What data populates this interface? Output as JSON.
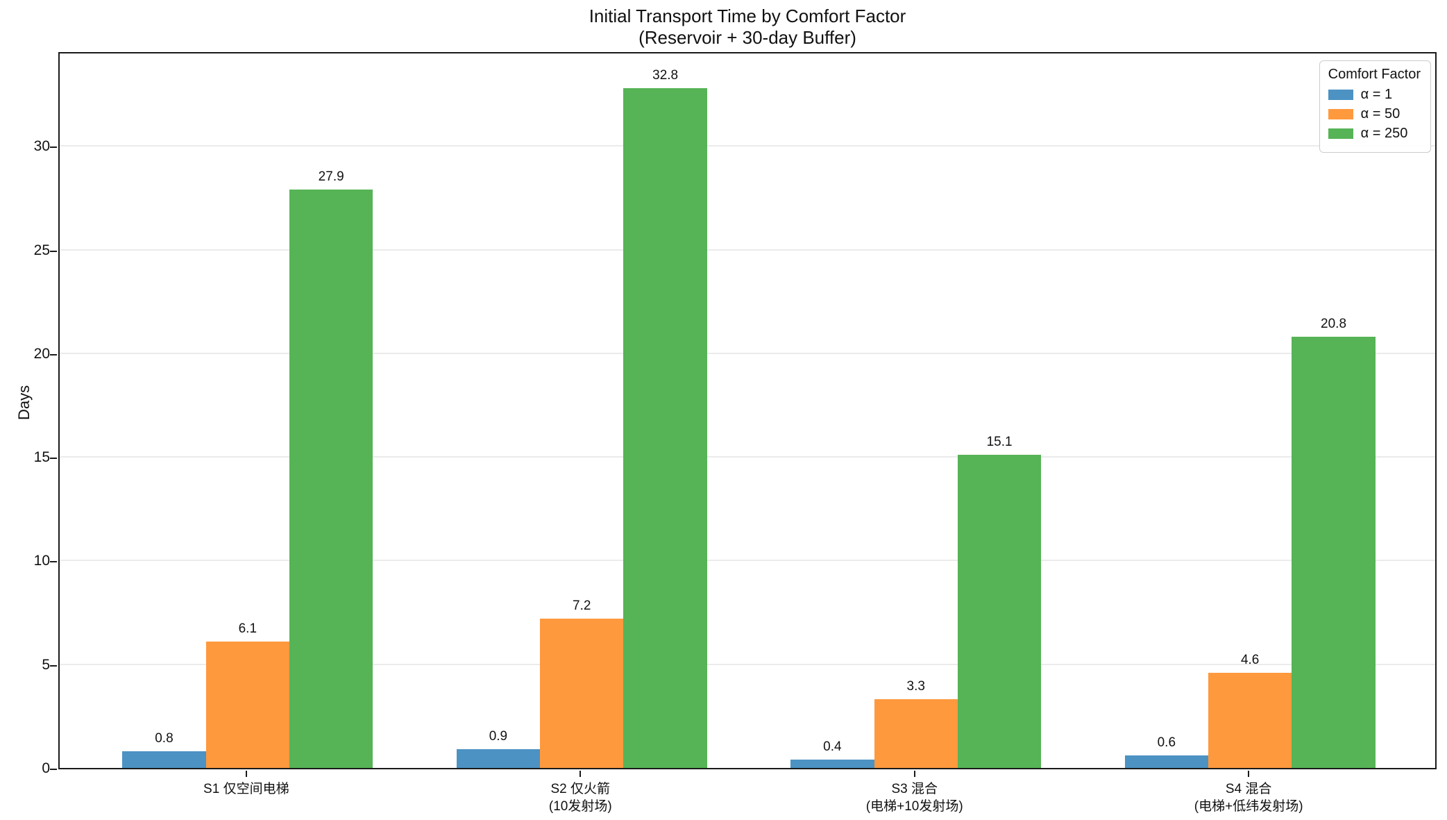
{
  "figure": {
    "title_line1": "Initial Transport Time by Comfort Factor",
    "title_line2": "(Reservoir + 30-day Buffer)"
  },
  "chart_data": {
    "type": "bar",
    "title": "Initial Transport Time by Comfort Factor",
    "subtitle": "(Reservoir + 30-day Buffer)",
    "xlabel": "",
    "ylabel": "Days",
    "ylim": [
      0,
      34.6
    ],
    "yticks": [
      0,
      5,
      10,
      15,
      20,
      25,
      30
    ],
    "grid": "horizontal",
    "gridline_color": "#ebebeb",
    "legend_title": "Comfort Factor",
    "legend_position": "upper right",
    "bar_value_labels_shown": true,
    "categories": [
      "S1 仅空间电梯",
      "S2 仅火箭 (10发射场)",
      "S3 混合 (电梯+10发射场)",
      "S4 混合 (电梯+低纬发射场)"
    ],
    "category_lines": [
      [
        "S1 仅空间电梯"
      ],
      [
        "S2 仅火箭",
        "(10发射场)"
      ],
      [
        "S3 混合",
        "(电梯+10发射场)"
      ],
      [
        "S4 混合",
        "(电梯+低纬发射场)"
      ]
    ],
    "series": [
      {
        "name": "α = 1",
        "color": "#4C92C3",
        "values": [
          0.8,
          0.9,
          0.4,
          0.6
        ]
      },
      {
        "name": "α = 50",
        "color": "#FF993E",
        "values": [
          6.1,
          7.2,
          3.3,
          4.6
        ]
      },
      {
        "name": "α = 250",
        "color": "#56B356",
        "values": [
          27.9,
          32.8,
          15.1,
          20.8
        ]
      }
    ],
    "value_labels": [
      [
        "0.8",
        "0.9",
        "0.4",
        "0.6"
      ],
      [
        "6.1",
        "7.2",
        "3.3",
        "4.6"
      ],
      [
        "27.9",
        "32.8",
        "15.1",
        "20.8"
      ]
    ]
  }
}
